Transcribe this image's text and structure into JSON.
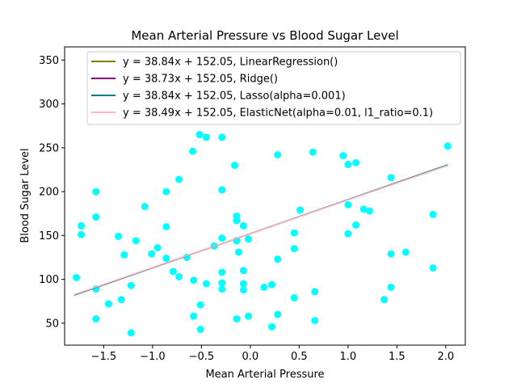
{
  "chart_data": {
    "type": "scatter",
    "title": "Mean Arterial Pressure vs Blood Sugar Level",
    "xlabel": "Mean Arterial Pressure",
    "ylabel": "Blood Sugar Level",
    "xlim": [
      -1.9,
      2.2
    ],
    "ylim": [
      25,
      365
    ],
    "xticks": [
      -1.5,
      -1.0,
      -0.5,
      0.0,
      0.5,
      1.0,
      1.5,
      2.0
    ],
    "xtick_labels": [
      "−1.5",
      "−1.0",
      "−0.5",
      "0.0",
      "0.5",
      "1.0",
      "1.5",
      "2.0"
    ],
    "yticks": [
      50,
      100,
      150,
      200,
      250,
      300,
      350
    ],
    "ytick_labels": [
      "50",
      "100",
      "150",
      "200",
      "250",
      "300",
      "350"
    ],
    "grid": false,
    "legend_position": "top-right",
    "scatter": {
      "color": "#00ffff",
      "points": [
        [
          -1.78,
          102
        ],
        [
          -1.73,
          161
        ],
        [
          -1.73,
          151
        ],
        [
          -1.58,
          200
        ],
        [
          -1.58,
          171
        ],
        [
          -1.58,
          89
        ],
        [
          -1.58,
          55
        ],
        [
          -1.45,
          72
        ],
        [
          -1.35,
          149
        ],
        [
          -1.32,
          77
        ],
        [
          -1.29,
          128
        ],
        [
          -1.22,
          93
        ],
        [
          -1.22,
          39
        ],
        [
          -1.17,
          144
        ],
        [
          -1.08,
          183
        ],
        [
          -1.01,
          129
        ],
        [
          -0.95,
          136
        ],
        [
          -0.86,
          200
        ],
        [
          -0.86,
          160
        ],
        [
          -0.86,
          124
        ],
        [
          -0.79,
          109
        ],
        [
          -0.73,
          214
        ],
        [
          -0.73,
          103
        ],
        [
          -0.65,
          125
        ],
        [
          -0.59,
          246
        ],
        [
          -0.58,
          99
        ],
        [
          -0.58,
          58
        ],
        [
          -0.52,
          265
        ],
        [
          -0.51,
          71
        ],
        [
          -0.51,
          43
        ],
        [
          -0.45,
          262
        ],
        [
          -0.45,
          95
        ],
        [
          -0.37,
          138
        ],
        [
          -0.29,
          262
        ],
        [
          -0.29,
          202
        ],
        [
          -0.29,
          147
        ],
        [
          -0.29,
          108
        ],
        [
          -0.29,
          96
        ],
        [
          -0.29,
          89
        ],
        [
          -0.16,
          230
        ],
        [
          -0.14,
          172
        ],
        [
          -0.14,
          167
        ],
        [
          -0.14,
          144
        ],
        [
          -0.14,
          55
        ],
        [
          -0.12,
          131
        ],
        [
          -0.07,
          161
        ],
        [
          -0.07,
          110
        ],
        [
          -0.07,
          95
        ],
        [
          -0.07,
          88
        ],
        [
          -0.02,
          146
        ],
        [
          -0.02,
          58
        ],
        [
          0.14,
          91
        ],
        [
          0.22,
          94
        ],
        [
          0.22,
          46
        ],
        [
          0.28,
          242
        ],
        [
          0.28,
          123
        ],
        [
          0.28,
          60
        ],
        [
          0.45,
          153
        ],
        [
          0.45,
          135
        ],
        [
          0.45,
          79
        ],
        [
          0.51,
          179
        ],
        [
          0.64,
          245
        ],
        [
          0.66,
          86
        ],
        [
          0.66,
          53
        ],
        [
          0.95,
          241
        ],
        [
          1.0,
          231
        ],
        [
          1.0,
          185
        ],
        [
          1.0,
          152
        ],
        [
          1.08,
          233
        ],
        [
          1.08,
          162
        ],
        [
          1.16,
          180
        ],
        [
          1.22,
          178
        ],
        [
          1.37,
          77
        ],
        [
          1.44,
          216
        ],
        [
          1.44,
          129
        ],
        [
          1.44,
          91
        ],
        [
          1.59,
          131
        ],
        [
          1.87,
          174
        ],
        [
          1.87,
          113
        ],
        [
          2.02,
          252
        ]
      ]
    },
    "series": [
      {
        "name": "y = 38.84x + 152.05, LinearRegression()",
        "color": "#808000",
        "slope": 38.84,
        "intercept": 152.05,
        "x_range": [
          -1.8,
          2.02
        ]
      },
      {
        "name": "y = 38.73x + 152.05, Ridge()",
        "color": "#800080",
        "slope": 38.73,
        "intercept": 152.05,
        "x_range": [
          -1.8,
          2.02
        ]
      },
      {
        "name": "y = 38.84x + 152.05, Lasso(alpha=0.001)",
        "color": "#008080",
        "slope": 38.84,
        "intercept": 152.05,
        "x_range": [
          -1.8,
          2.02
        ]
      },
      {
        "name": "y = 38.49x + 152.05, ElasticNet(alpha=0.01, l1_ratio=0.1)",
        "color": "#ffb6c1",
        "slope": 38.49,
        "intercept": 152.05,
        "x_range": [
          -1.8,
          2.02
        ]
      }
    ]
  }
}
